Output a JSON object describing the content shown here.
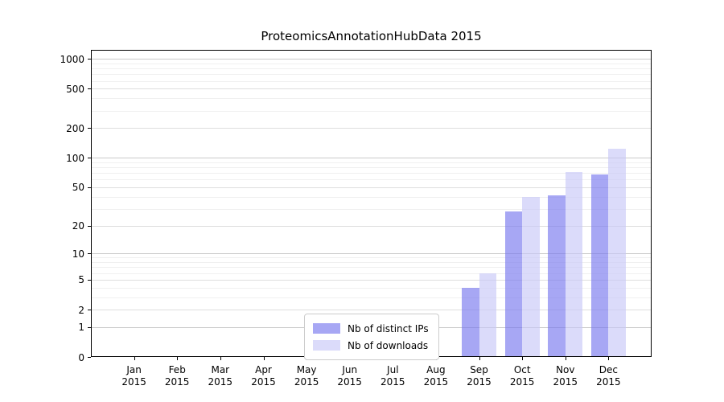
{
  "chart_data": {
    "type": "bar",
    "title": "ProteomicsAnnotationHubData 2015",
    "months": [
      "Jan",
      "Feb",
      "Mar",
      "Apr",
      "May",
      "Jun",
      "Jul",
      "Aug",
      "Sep",
      "Oct",
      "Nov",
      "Dec"
    ],
    "year": "2015",
    "categories": [
      "Jan 2015",
      "Feb 2015",
      "Mar 2015",
      "Apr 2015",
      "May 2015",
      "Jun 2015",
      "Jul 2015",
      "Aug 2015",
      "Sep 2015",
      "Oct 2015",
      "Nov 2015",
      "Dec 2015"
    ],
    "series": [
      {
        "name": "Nb of distinct IPs",
        "color": "#7878ee",
        "alpha": 0.65,
        "values": [
          0,
          0,
          0,
          0,
          0,
          0,
          0,
          0,
          4,
          28,
          41,
          68
        ]
      },
      {
        "name": "Nb of downloads",
        "color": "#c8c8f8",
        "alpha": 0.65,
        "values": [
          0,
          0,
          0,
          0,
          0,
          0,
          0,
          0,
          6,
          40,
          72,
          124
        ]
      }
    ],
    "yscale": "log1p",
    "ylim": [
      0,
      1230
    ],
    "yticks": [
      0,
      1,
      2,
      5,
      10,
      20,
      50,
      100,
      200,
      500,
      1000
    ],
    "gridlines": {
      "major": [
        1,
        10,
        100,
        1000
      ],
      "mid": [
        2,
        5,
        20,
        50,
        200,
        500
      ],
      "minor": [
        3,
        4,
        6,
        7,
        8,
        9,
        30,
        40,
        60,
        70,
        80,
        90,
        300,
        400,
        600,
        700,
        800,
        900
      ]
    },
    "grid": true,
    "xlabel": "",
    "ylabel": "",
    "legend_position": "lower center"
  },
  "colors": {
    "background": "#ffffff",
    "frame": "#000000",
    "text": "#000000",
    "grid_major": "#c9c9c9",
    "grid_mid": "#dedede",
    "grid_minor": "#f0f0f0",
    "legend_border": "#cccccc"
  }
}
